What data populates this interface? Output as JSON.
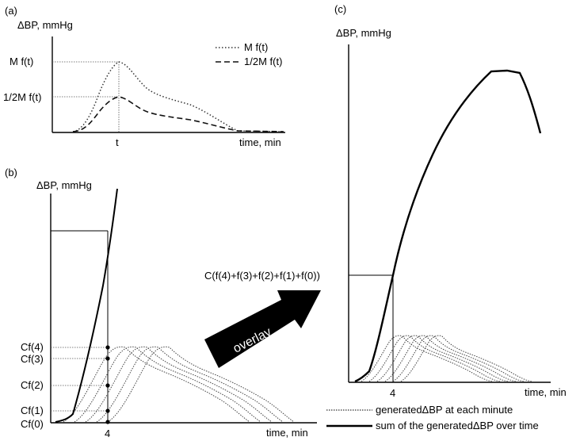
{
  "panel_a": {
    "panel_label": "(a)",
    "ylabel": "ΔBP, mmHg",
    "xlabel": "time, min",
    "y_tick_high": "M f(t)",
    "y_tick_low": "1/2M f(t)",
    "x_tick": "t",
    "legend": [
      {
        "label": "M f(t)",
        "style": "dotted"
      },
      {
        "label": "1/2M f(t)",
        "style": "dashed"
      }
    ]
  },
  "panel_b": {
    "panel_label": "(b)",
    "ylabel": "ΔBP, mmHg",
    "xlabel": "time, min",
    "x_tick": "4",
    "y_ticks": [
      "Cf(4)",
      "Cf(3)",
      "Cf(2)",
      "Cf(1)",
      "Cf(0)"
    ]
  },
  "panel_c": {
    "panel_label": "(c)",
    "ylabel": "ΔBP, mmHg",
    "xlabel": "time, min",
    "x_tick": "4",
    "y_tick": "C(f(4)+f(3)+f(2)+f(1)+f(0))",
    "legend": [
      {
        "label": "generatedΔBP at each minute",
        "style": "dotted"
      },
      {
        "label": "sum of the generatedΔBP over time",
        "style": "solid"
      }
    ]
  },
  "arrow": {
    "label": "overlay",
    "color": "#000000"
  }
}
